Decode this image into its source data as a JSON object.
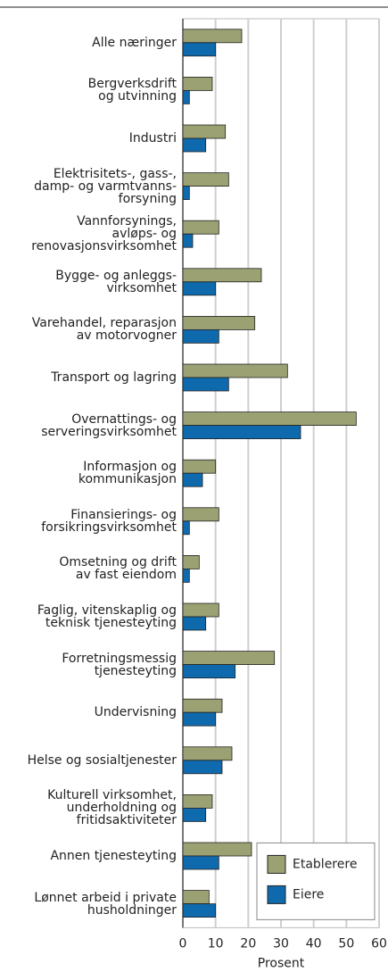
{
  "chart_data": {
    "type": "bar",
    "orientation": "horizontal",
    "categories": [
      "Alle næringer",
      "Bergverksdrift\nog utvinning",
      "Industri",
      "Elektrisitets-, gass-,\ndamp- og varmtvanns-\nforsyning",
      "Vannforsynings,\navløps- og\nrenovasjonsvirksomhet",
      "Bygge- og anleggs-\nvirksomhet",
      "Varehandel, reparasjon\nav motorvogner",
      "Transport og lagring",
      "Overnattings- og\nserveringsvirksomhet",
      "Informasjon og\nkommunikasjon",
      "Finansierings- og\nforsikringsvirksomhet",
      "Omsetning og drift\nav fast eiendom",
      "Faglig, vitenskaplig og\nteknisk tjenesteyting",
      "Forretningsmessig\ntjenesteyting",
      "Undervisning",
      "Helse og sosialtjenester",
      "Kulturell virksomhet,\nunderholdning og\nfritidsaktiviteter",
      "Annen tjenesteyting",
      "Lønnet arbeid i private\nhusholdninger"
    ],
    "series": [
      {
        "name": "Etablerere",
        "color": "#9ba173",
        "values": [
          18,
          9,
          13,
          14,
          11,
          24,
          22,
          32,
          53,
          10,
          11,
          5,
          11,
          28,
          12,
          15,
          9,
          21,
          8
        ]
      },
      {
        "name": "Eiere",
        "color": "#0f69ad",
        "values": [
          10,
          2,
          7,
          2,
          3,
          10,
          11,
          14,
          36,
          6,
          2,
          2,
          7,
          16,
          10,
          12,
          7,
          11,
          10
        ]
      }
    ],
    "xlabel": "Prosent",
    "xlim": [
      0,
      60
    ],
    "xticks": [
      0,
      10,
      20,
      30,
      40,
      50,
      60
    ],
    "grid": true,
    "legend": "lower right"
  }
}
